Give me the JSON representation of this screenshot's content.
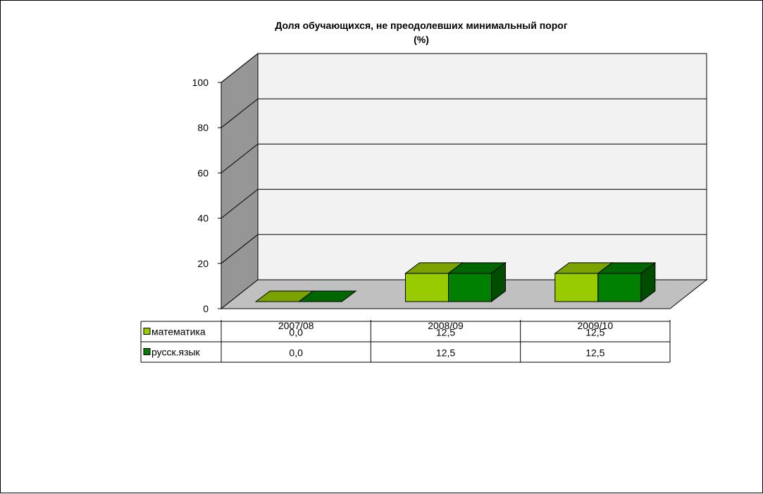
{
  "chart_data": {
    "type": "bar",
    "title": "Доля обучающихся, не преодолевших минимальный порог",
    "subtitle": "(%)",
    "categories": [
      "2007/08",
      "2008/09",
      "2009/10"
    ],
    "series": [
      {
        "name": "математика",
        "values": [
          0.0,
          12.5,
          12.5
        ],
        "display": [
          "0,0",
          "12,5",
          "12,5"
        ],
        "color": "#99cc00"
      },
      {
        "name": "русск.язык",
        "values": [
          0.0,
          12.5,
          12.5
        ],
        "display": [
          "0,0",
          "12,5",
          "12,5"
        ],
        "color": "#008000"
      }
    ],
    "ylim": [
      0,
      100
    ],
    "yticks": [
      0,
      20,
      40,
      60,
      80,
      100
    ],
    "grid": true,
    "three_d": true,
    "data_table": true,
    "colors": {
      "back_wall": "#f2f2f2",
      "side_wall": "#969696",
      "floor": "#c0c0c0"
    }
  }
}
